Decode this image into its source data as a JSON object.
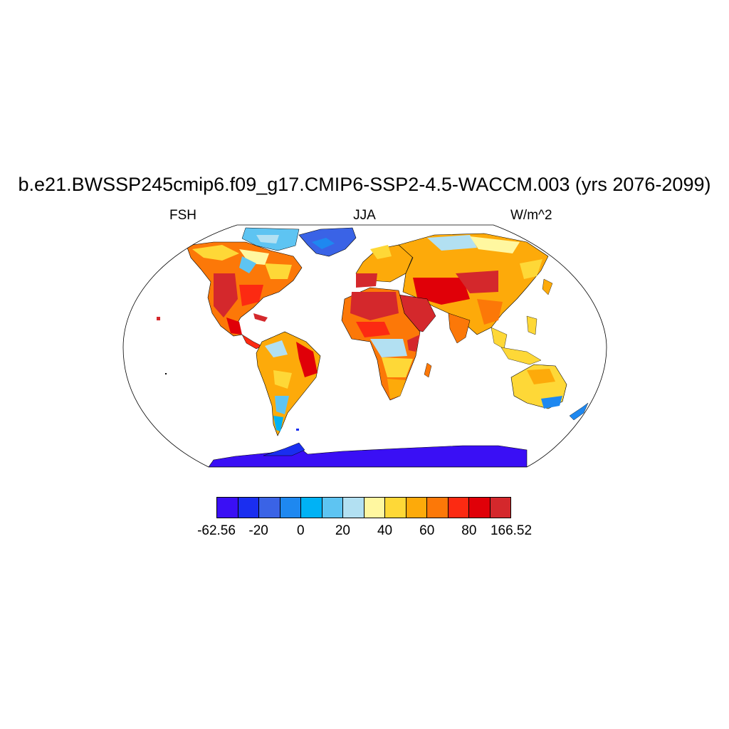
{
  "title": "b.e21.BWSSP245cmip6.f09_g17.CMIP6-SSP2-4.5-WACCM.003 (yrs 2076-2099)",
  "subtitle_left": "FSH",
  "subtitle_center": "JJA",
  "subtitle_right": "W/m^2",
  "colorbar": {
    "colors": [
      "#3a0ff5",
      "#1a2ef0",
      "#3a63e6",
      "#1e88f0",
      "#00b2f5",
      "#5ec4f2",
      "#b2e0f2",
      "#fff7a0",
      "#fed837",
      "#fdaa0a",
      "#fc7808",
      "#fc2a12",
      "#e00008",
      "#d4282c"
    ],
    "labels": [
      "-62.56",
      "-20",
      "0",
      "20",
      "40",
      "60",
      "80",
      "166.52"
    ]
  }
}
